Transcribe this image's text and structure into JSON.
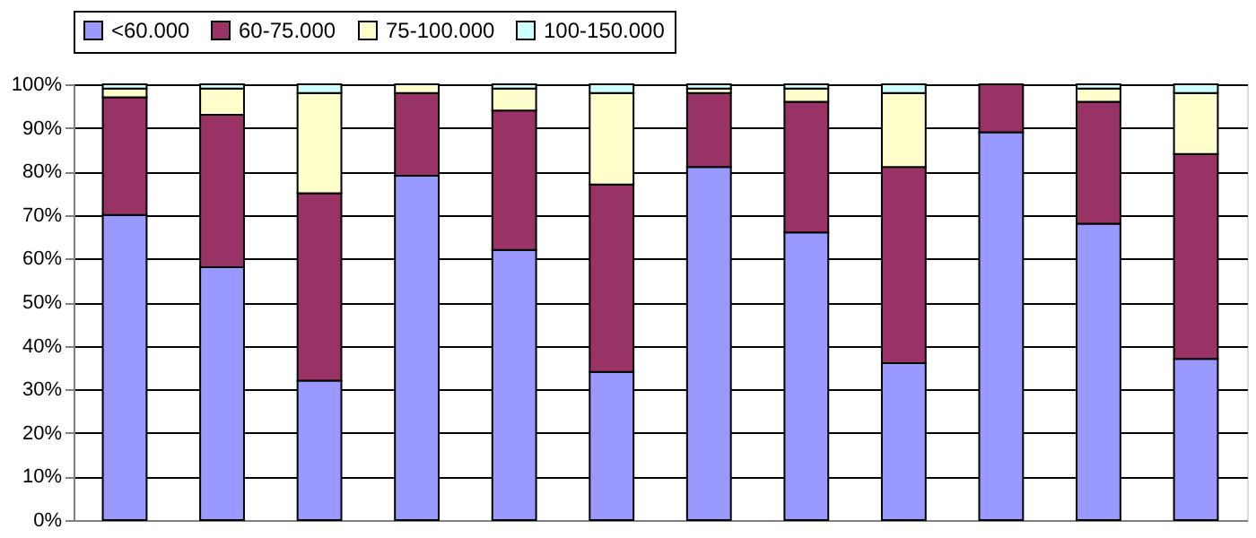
{
  "chart_data": {
    "type": "bar",
    "stacked": true,
    "categories": [
      null,
      null,
      null,
      null,
      null,
      null,
      null,
      null,
      null,
      null,
      null,
      null
    ],
    "series": [
      {
        "name": "<60.000",
        "color": "#9999ff",
        "values": [
          70,
          58,
          32,
          79,
          62,
          34,
          81,
          66,
          36,
          89,
          68,
          37
        ]
      },
      {
        "name": "60-75.000",
        "color": "#993366",
        "values": [
          27,
          35,
          43,
          19,
          32,
          43,
          17,
          30,
          45,
          11,
          28,
          47
        ]
      },
      {
        "name": "75-100.000",
        "color": "#ffffcc",
        "values": [
          2,
          6,
          23,
          2,
          5,
          21,
          1,
          3,
          17,
          null,
          3,
          14
        ]
      },
      {
        "name": "100-150.000",
        "color": "#ccffff",
        "values": [
          1,
          1,
          2,
          null,
          1,
          2,
          1,
          1,
          2,
          null,
          1,
          2
        ]
      }
    ],
    "ylim": [
      0,
      100
    ],
    "yticks": [
      {
        "value": 0,
        "label": "0%"
      },
      {
        "value": 10,
        "label": "10%"
      },
      {
        "value": 20,
        "label": "20%"
      },
      {
        "value": 30,
        "label": "30%"
      },
      {
        "value": 40,
        "label": "40%"
      },
      {
        "value": 50,
        "label": "50%"
      },
      {
        "value": 60,
        "label": "60%"
      },
      {
        "value": 70,
        "label": "70%"
      },
      {
        "value": 80,
        "label": "80%"
      },
      {
        "value": 90,
        "label": "90%"
      },
      {
        "value": 100,
        "label": "100%"
      }
    ],
    "grid": "y",
    "legend": "top"
  }
}
